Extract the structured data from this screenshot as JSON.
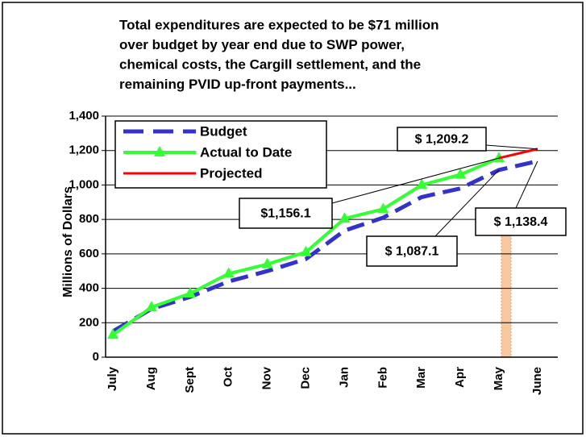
{
  "chart_data": {
    "type": "line",
    "title": [
      "Total expenditures are expected to be $71 million",
      "over budget by year end due to SWP power,",
      "chemical costs, the Cargill settlement, and the",
      "remaining PVID up-front payments..."
    ],
    "y_label": "Millions of Dollars",
    "categories": [
      "July",
      "Aug",
      "Sept",
      "Oct",
      "Nov",
      "Dec",
      "Jan",
      "Feb",
      "Mar",
      "Apr",
      "May",
      "June"
    ],
    "series": [
      {
        "name": "Budget",
        "color": "#3333cc",
        "values": [
          150,
          280,
          350,
          440,
          500,
          570,
          735,
          810,
          930,
          980,
          1087.1,
          1138.4
        ],
        "value_labels": [
          null,
          null,
          null,
          null,
          null,
          null,
          null,
          null,
          null,
          null,
          "$ 1,087.1",
          "$ 1,138.4"
        ]
      },
      {
        "name": "Actual to Date",
        "color": "#33ff33",
        "values": [
          130,
          290,
          370,
          485,
          540,
          610,
          805,
          860,
          1000,
          1060,
          1156.1,
          null
        ],
        "value_labels": [
          null,
          null,
          null,
          null,
          null,
          null,
          null,
          null,
          null,
          null,
          "$1,156.1",
          null
        ]
      },
      {
        "name": "Projected",
        "color": "#ff0000",
        "values": [
          null,
          null,
          null,
          null,
          null,
          null,
          null,
          null,
          null,
          null,
          1156.1,
          1209.2
        ],
        "value_labels": [
          null,
          null,
          null,
          null,
          null,
          null,
          null,
          null,
          null,
          null,
          null,
          "$ 1,209.2"
        ]
      }
    ],
    "ylim": [
      0,
      1400
    ],
    "yticks": [
      0,
      200,
      400,
      600,
      800,
      {
        "value": 1000,
        "label": "1,000"
      },
      {
        "value": 1200,
        "label": "1,200"
      },
      {
        "value": 1400,
        "label": "1,400"
      }
    ],
    "grid": true
  }
}
